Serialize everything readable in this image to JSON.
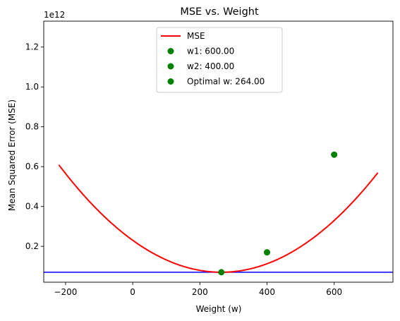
{
  "chart_data": {
    "type": "line",
    "title": "MSE vs. Weight",
    "xlabel": "Weight (w)",
    "ylabel": "Mean Squared Error (MSE)",
    "y_offset_label": "1e12",
    "xlim": [
      -265,
      775
    ],
    "ylim": [
      20000000000.0,
      1330000000000.0
    ],
    "x_ticks": [
      -200,
      0,
      200,
      400,
      600
    ],
    "x_tick_labels": [
      "−200",
      "0",
      "200",
      "400",
      "600"
    ],
    "y_ticks": [
      200000000000.0,
      400000000000.0,
      600000000000.0,
      800000000000.0,
      1000000000000.0,
      1200000000000.0
    ],
    "y_tick_labels": [
      "0.2",
      "0.4",
      "0.6",
      "0.8",
      "1.0",
      "1.2"
    ],
    "grid": false,
    "legend_position": "top-center",
    "series": [
      {
        "name": "MSE",
        "kind": "line",
        "color": "#ff0000",
        "model": "quadratic",
        "x_range": [
          -220,
          730
        ],
        "vertex_x": 264,
        "vertex_y": 70000000000.0,
        "curvature": 2300000.0
      },
      {
        "name": "w1: 600.00",
        "kind": "point",
        "color": "#008000",
        "x": 600,
        "y": 660000000000.0
      },
      {
        "name": "w2: 400.00",
        "kind": "point",
        "color": "#008000",
        "x": 400,
        "y": 170000000000.0
      },
      {
        "name": "Optimal w: 264.00",
        "kind": "point",
        "color": "#008000",
        "x": 264,
        "y": 70000000000.0
      }
    ],
    "reference_lines": [
      {
        "orientation": "horizontal",
        "y": 70000000000.0,
        "color": "#0000ff"
      }
    ]
  }
}
